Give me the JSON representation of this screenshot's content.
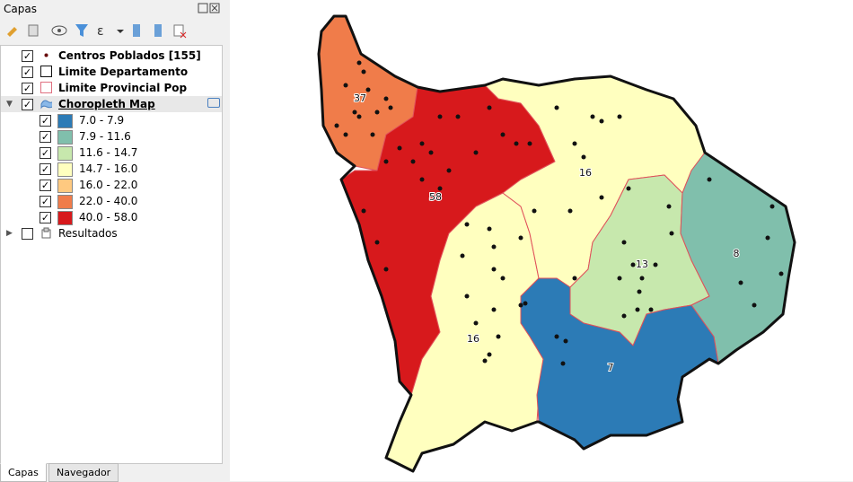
{
  "panel": {
    "title": "Capas",
    "layers": [
      {
        "name": "Centros Poblados [155]",
        "checked": true
      },
      {
        "name": "Limite Departamento",
        "checked": true
      },
      {
        "name": "Limite Provincial Pop",
        "checked": true
      },
      {
        "name": "Choropleth Map",
        "checked": true
      },
      {
        "name": "Resultados",
        "checked": false
      }
    ],
    "classes": [
      {
        "label": "7.0 - 7.9",
        "color": "#2c7bb6",
        "checked": true
      },
      {
        "label": "7.9 - 11.6",
        "color": "#80bfac",
        "checked": true
      },
      {
        "label": "11.6 - 14.7",
        "color": "#c7e8ad",
        "checked": true
      },
      {
        "label": "14.7 - 16.0",
        "color": "#ffffbf",
        "checked": true
      },
      {
        "label": "16.0 - 22.0",
        "color": "#fec980",
        "checked": true
      },
      {
        "label": "22.0 - 40.0",
        "color": "#f07c4a",
        "checked": true
      },
      {
        "label": "40.0 - 58.0",
        "color": "#d7191c",
        "checked": true
      }
    ],
    "tabs": [
      "Capas",
      "Navegador"
    ]
  },
  "map": {
    "labels": [
      "37",
      "58",
      "16",
      "16",
      "13",
      "8",
      "7"
    ]
  }
}
